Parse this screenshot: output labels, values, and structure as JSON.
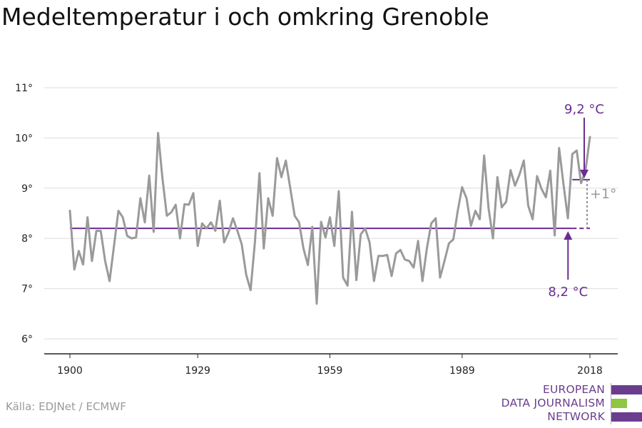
{
  "title": "Medeltemperatur i och omkring Grenoble",
  "source": "Källa: EDJNet / ECMWF",
  "logo": {
    "lines": [
      "EUROPEAN",
      "DATA JOURNALISM",
      "NETWORK"
    ],
    "colors": [
      "#6b3d8f",
      "#8dc63f",
      "#6b3d8f"
    ]
  },
  "colors": {
    "series": "#9a9a9a",
    "accent": "#6b2c91",
    "grid": "#dddddd",
    "axis": "#222222"
  },
  "chart_data": {
    "type": "line",
    "xlim": [
      1900,
      2018
    ],
    "ylim": [
      6,
      11
    ],
    "xticks": [
      1900,
      1929,
      1959,
      1989,
      2018
    ],
    "yticks": [
      {
        "value": 6,
        "label": "6°"
      },
      {
        "value": 7,
        "label": "7°"
      },
      {
        "value": 8,
        "label": "8°"
      },
      {
        "value": 9,
        "label": "9°"
      },
      {
        "value": 10,
        "label": "10°"
      },
      {
        "value": 11,
        "label": "11°"
      }
    ],
    "grid": true,
    "series": [
      {
        "x": [
          1900,
          1901,
          1902,
          1903,
          1904,
          1905,
          1906,
          1907,
          1908,
          1909,
          1910,
          1911,
          1912,
          1913,
          1914,
          1915,
          1916,
          1917,
          1918,
          1919,
          1920,
          1921,
          1922,
          1923,
          1924,
          1925,
          1926,
          1927,
          1928,
          1929,
          1930,
          1931,
          1932,
          1933,
          1934,
          1935,
          1936,
          1937,
          1938,
          1939,
          1940,
          1941,
          1942,
          1943,
          1944,
          1945,
          1946,
          1947,
          1948,
          1949,
          1950,
          1951,
          1952,
          1953,
          1954,
          1955,
          1956,
          1957,
          1958,
          1959,
          1960,
          1961,
          1962,
          1963,
          1964,
          1965,
          1966,
          1967,
          1968,
          1969,
          1970,
          1971,
          1972,
          1973,
          1974,
          1975,
          1976,
          1977,
          1978,
          1979,
          1980,
          1981,
          1982,
          1983,
          1984,
          1985,
          1986,
          1987,
          1988,
          1989,
          1990,
          1991,
          1992,
          1993,
          1994,
          1995,
          1996,
          1997,
          1998,
          1999,
          2000,
          2001,
          2002,
          2003,
          2004,
          2005,
          2006,
          2007,
          2008,
          2009,
          2010,
          2011,
          2012,
          2013,
          2014,
          2015,
          2016,
          2017,
          2018
        ],
        "values": [
          8.55,
          7.38,
          7.75,
          7.48,
          8.42,
          7.55,
          8.15,
          8.15,
          7.55,
          7.15,
          7.85,
          8.55,
          8.42,
          8.05,
          8.0,
          8.02,
          8.8,
          8.32,
          9.25,
          8.13,
          10.1,
          9.2,
          8.45,
          8.52,
          8.67,
          8.0,
          8.68,
          8.67,
          8.9,
          7.85,
          8.3,
          8.2,
          8.32,
          8.15,
          8.75,
          7.92,
          8.12,
          8.4,
          8.15,
          7.88,
          7.28,
          6.97,
          7.95,
          9.3,
          7.8,
          8.8,
          8.45,
          9.6,
          9.22,
          9.55,
          9.0,
          8.45,
          8.32,
          7.8,
          7.47,
          8.23,
          6.7,
          8.33,
          8.02,
          8.42,
          7.85,
          8.94,
          7.22,
          7.06,
          8.53,
          7.17,
          8.08,
          8.2,
          7.92,
          7.15,
          7.65,
          7.65,
          7.67,
          7.25,
          7.7,
          7.77,
          7.58,
          7.55,
          7.42,
          7.95,
          7.15,
          7.8,
          8.3,
          8.4,
          7.22,
          7.55,
          7.9,
          7.98,
          8.55,
          9.02,
          8.8,
          8.25,
          8.55,
          8.38,
          9.65,
          8.6,
          8.0,
          9.22,
          8.62,
          8.73,
          9.36,
          9.05,
          9.27,
          9.55,
          8.65,
          8.38,
          9.24,
          8.99,
          8.82,
          9.35,
          8.06,
          9.8,
          9.08,
          8.4,
          9.68,
          9.75,
          9.1,
          9.35,
          10.02
        ]
      }
    ],
    "baseline": {
      "value": 8.2,
      "label": "8,2 °C",
      "solid_to": 2014
    },
    "recent": {
      "value": 9.17,
      "label": "9,2 °C",
      "from": 2014
    },
    "difference_label": "+1°"
  }
}
